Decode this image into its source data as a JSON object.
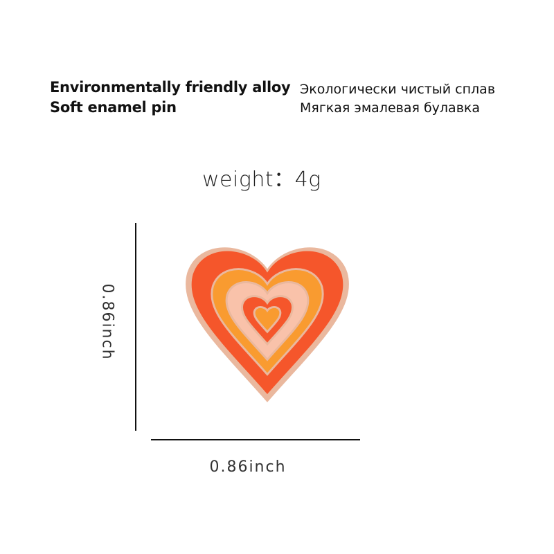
{
  "features_en": [
    "Environmentally friendly alloy",
    "Soft enamel pin"
  ],
  "features_ru": [
    "Экологически чистый сплав",
    "Мягкая эмалевая булавка"
  ],
  "weight": "weight：4g",
  "dimensions": {
    "height": "0.86inch",
    "width": "0.86inch"
  },
  "pin_colors": {
    "rim": "#eab89e",
    "red": "#f5562b",
    "orange": "#f99b30",
    "pink": "#f9c2aa"
  }
}
